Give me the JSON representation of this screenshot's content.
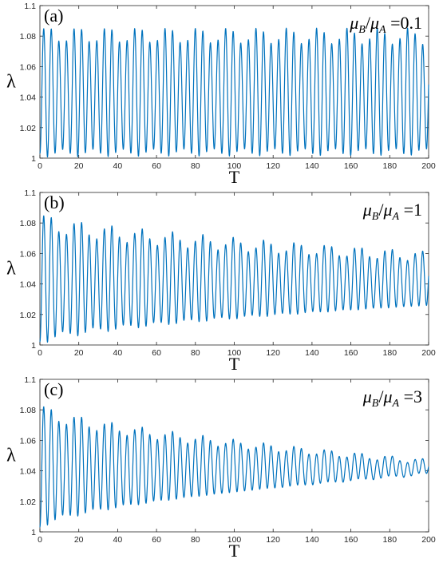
{
  "figure": {
    "panels": [
      {
        "panel_label": "(a)",
        "param": {
          "ratio_value": "0.1"
        }
      },
      {
        "panel_label": "(b)",
        "param": {
          "ratio_value": "1"
        }
      },
      {
        "panel_label": "(c)",
        "param": {
          "ratio_value": "3"
        }
      }
    ],
    "series_color": "#0072BD"
  },
  "chart_data": [
    {
      "type": "line",
      "panel": "(a)",
      "annotation": "μB/μA =0.1",
      "xlabel": "T",
      "ylabel": "λ",
      "xlim": [
        0,
        200
      ],
      "ylim": [
        1,
        1.1
      ],
      "xticks": [
        "0",
        "20",
        "40",
        "60",
        "80",
        "100",
        "120",
        "140",
        "160",
        "180",
        "200"
      ],
      "yticks": [
        "1",
        "1.02",
        "1.04",
        "1.06",
        "1.08",
        "1.1"
      ],
      "grid": false,
      "series": [
        {
          "x_range": [
            0,
            200
          ],
          "mean": 1.042,
          "oscillation_period": 3.9,
          "amplitude_start": 0.039,
          "amplitude_end": 0.038,
          "beat_period": 15.5,
          "beat_depth": 0.004,
          "peaks_range": [
            1.077,
            1.084
          ],
          "troughs_range": [
            1.0,
            1.004
          ]
        }
      ]
    },
    {
      "type": "line",
      "panel": "(b)",
      "annotation": "μB/μA =1",
      "xlabel": "T",
      "ylabel": "λ",
      "xlim": [
        0,
        200
      ],
      "ylim": [
        1,
        1.1
      ],
      "xticks": [
        "0",
        "20",
        "40",
        "60",
        "80",
        "100",
        "120",
        "140",
        "160",
        "180",
        "200"
      ],
      "yticks": [
        "1",
        "1.02",
        "1.04",
        "1.06",
        "1.08",
        "1.1"
      ],
      "grid": false,
      "series": [
        {
          "x_range": [
            0,
            200
          ],
          "mean": 1.042,
          "oscillation_period": 3.9,
          "amplitude_start": 0.04,
          "amplitude_end": 0.016,
          "beat_period": 16,
          "beat_depth": 0.0045,
          "peaks_range": [
            1.057,
            1.083
          ],
          "troughs_range": [
            1.002,
            1.029
          ]
        }
      ]
    },
    {
      "type": "line",
      "panel": "(c)",
      "annotation": "μB/μA =3",
      "xlabel": "T",
      "ylabel": "λ",
      "xlim": [
        0,
        200
      ],
      "ylim": [
        1,
        1.1
      ],
      "xticks": [
        "0",
        "20",
        "40",
        "60",
        "80",
        "100",
        "120",
        "140",
        "160",
        "180",
        "200"
      ],
      "yticks": [
        "1",
        "1.02",
        "1.04",
        "1.06",
        "1.08",
        "1.1"
      ],
      "grid": false,
      "series": [
        {
          "x_range": [
            0,
            200
          ],
          "mean": 1.042,
          "oscillation_period": 3.9,
          "amplitude_start": 0.039,
          "amplitude_end": 0.004,
          "beat_period": 16,
          "beat_depth": 0.0035,
          "peaks_range": [
            1.043,
            1.08
          ],
          "troughs_range": [
            1.004,
            1.037
          ]
        }
      ]
    }
  ]
}
